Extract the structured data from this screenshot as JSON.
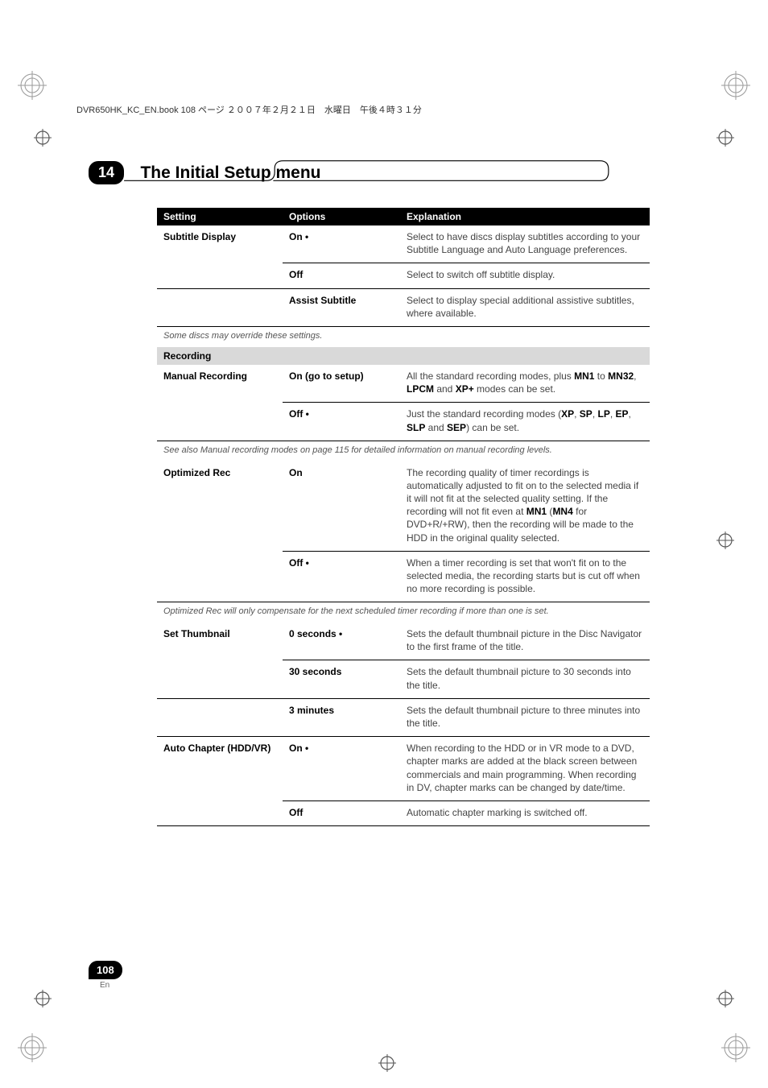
{
  "header": {
    "runhead": "DVR650HK_KC_EN.book  108 ページ  ２００７年２月２１日　水曜日　午後４時３１分"
  },
  "chapter": {
    "number": "14",
    "title": "The Initial Setup menu"
  },
  "table": {
    "head": {
      "c1": "Setting",
      "c2": "Options",
      "c3": "Explanation"
    },
    "rows": [
      {
        "type": "row",
        "setting": "Subtitle Display",
        "option": "On •",
        "text": "Select to have discs display subtitles according to your Subtitle Language and Auto Language preferences."
      },
      {
        "type": "row",
        "setting": "",
        "option": "Off",
        "text": "Select to switch off subtitle display."
      },
      {
        "type": "row",
        "setting": "",
        "option": "Assist Subtitle",
        "text": "Select to display special additional assistive subtitles, where available.",
        "thick": true
      },
      {
        "type": "note",
        "text": "Some discs may override these settings."
      },
      {
        "type": "section",
        "text": "Recording"
      },
      {
        "type": "row_html",
        "setting": "Manual Recording",
        "option": "On (go to setup)",
        "html": "All the standard recording modes, plus <b>MN1</b> to <b>MN32</b>, <b>LPCM</b> and <b>XP+</b> modes can be set."
      },
      {
        "type": "row_html",
        "setting": "",
        "option": "Off •",
        "html": "Just the standard recording modes (<b>XP</b>, <b>SP</b>, <b>LP</b>, <b>EP</b>, <b>SLP</b> and <b>SEP</b>) can be set.",
        "thick": true
      },
      {
        "type": "note",
        "text": "See also Manual recording modes on page 115 for detailed information on manual recording levels."
      },
      {
        "type": "row_html",
        "setting": "Optimized Rec",
        "option": "On",
        "html": "The recording quality of timer recordings is automatically adjusted to fit on to the selected media if it will not fit at the selected quality setting. If the recording will not fit even at <b>MN1</b> (<b>MN4</b> for DVD+R/+RW), then the recording will be made to the HDD in the original quality selected."
      },
      {
        "type": "row",
        "setting": "",
        "option": "Off •",
        "text": "When a timer recording is set that won't fit on to the selected media, the recording starts but is cut off when no more recording is possible.",
        "thick": true
      },
      {
        "type": "note",
        "text": "Optimized Rec will only compensate for the next scheduled timer recording if more than one is set."
      },
      {
        "type": "row",
        "setting": "Set Thumbnail",
        "option": "0 seconds •",
        "text": "Sets the default thumbnail picture in the Disc Navigator to the first frame of the title."
      },
      {
        "type": "row",
        "setting": "",
        "option": "30 seconds",
        "text": "Sets the default thumbnail picture to 30 seconds into the title."
      },
      {
        "type": "row",
        "setting": "",
        "option": "3 minutes",
        "text": "Sets the default thumbnail picture to three minutes into the title.",
        "thick": true
      },
      {
        "type": "row",
        "setting": "Auto Chapter (HDD/VR)",
        "option": "On •",
        "text": "When recording to the HDD or in VR mode to a DVD, chapter marks are added at the black screen between commercials and main programming. When recording in DV, chapter marks can be changed by date/time."
      },
      {
        "type": "row",
        "setting": "",
        "option": "Off",
        "text": "Automatic chapter marking is switched off.",
        "thick": true
      }
    ]
  },
  "footer": {
    "page": "108",
    "lang": "En"
  }
}
